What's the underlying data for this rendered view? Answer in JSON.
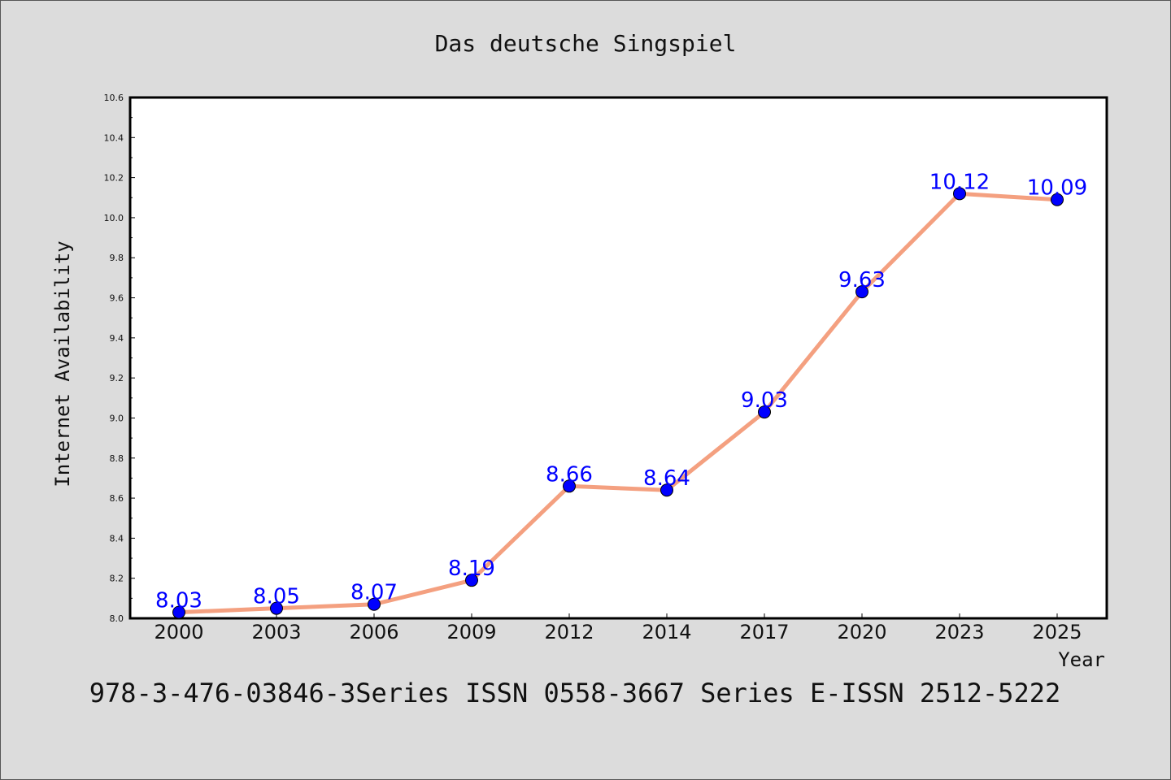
{
  "chart_data": {
    "type": "line",
    "title": "Das deutsche Singspiel",
    "xlabel": "Year",
    "ylabel": "Internet Availability",
    "categories": [
      "2000",
      "2003",
      "2006",
      "2009",
      "2012",
      "2014",
      "2017",
      "2020",
      "2023",
      "2025"
    ],
    "series": [
      {
        "values": [
          8.03,
          8.05,
          8.07,
          8.19,
          8.66,
          8.64,
          9.03,
          9.63,
          10.12,
          10.09
        ],
        "labels": [
          "8.03",
          "8.05",
          "8.07",
          "8.19",
          "8.66",
          "8.64",
          "9.03",
          "9.63",
          "10.12",
          "10.09"
        ],
        "line_color": "#f4a080",
        "marker_color": "#0000ff"
      }
    ],
    "ylim": [
      8.0,
      10.6
    ],
    "yticks": [
      "8.0",
      "8.2",
      "8.4",
      "8.6",
      "8.8",
      "9.0",
      "9.2",
      "9.4",
      "9.6",
      "9.8",
      "10.0",
      "10.2",
      "10.4",
      "10.6"
    ],
    "grid": false,
    "legend": "none"
  },
  "footer_text": "978-3-476-03846-3Series ISSN 0558-3667 Series E-ISSN 2512-5222",
  "colors": {
    "background": "#dcdcdc",
    "plot_background": "#ffffff",
    "data_label": "#0000ff"
  }
}
